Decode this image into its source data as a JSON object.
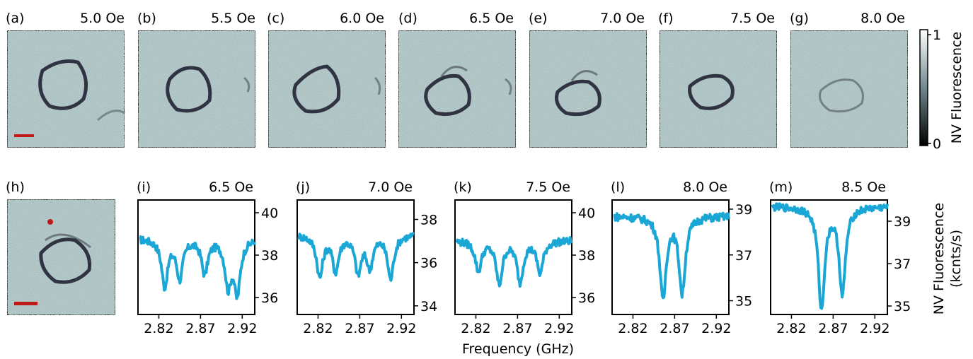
{
  "colors": {
    "trace": "#1aa7d6",
    "scalebar": "#c0191a",
    "axis": "#000000",
    "map_base": "#a9bfbf",
    "map_dark": "#1a1a2a"
  },
  "colorbar": {
    "label": "NV Fluorescence",
    "min_label": "0",
    "max_label": "1"
  },
  "maps_top": [
    {
      "tag": "(a)",
      "field": "5.0 Oe"
    },
    {
      "tag": "(b)",
      "field": "5.5 Oe"
    },
    {
      "tag": "(c)",
      "field": "6.0 Oe"
    },
    {
      "tag": "(d)",
      "field": "6.5 Oe"
    },
    {
      "tag": "(e)",
      "field": "7.0 Oe"
    },
    {
      "tag": "(f)",
      "field": "7.5 Oe"
    },
    {
      "tag": "(g)",
      "field": "8.0 Oe"
    }
  ],
  "map_h": {
    "tag": "(h)"
  },
  "shared_xlabel": "Frequency (GHz)",
  "shared_ylabel_line1": "NV Fluorescence",
  "shared_ylabel_line2": "(kcnts/s)",
  "chart_data": [
    {
      "type": "line",
      "tag": "(i)",
      "field": "6.5 Oe",
      "xlim": [
        2.795,
        2.935
      ],
      "ylim": [
        35.2,
        40.6
      ],
      "xticks": [
        2.82,
        2.87,
        2.92
      ],
      "xtick_labels": [
        "2.82",
        "2.87",
        "2.92"
      ],
      "yticks": [
        36,
        38,
        40
      ],
      "ytick_labels": [
        "36",
        "38",
        "40"
      ],
      "baseline": 38.8,
      "dips": [
        [
          2.827,
          2.2
        ],
        [
          2.845,
          1.8
        ],
        [
          2.875,
          1.6
        ],
        [
          2.903,
          2.1
        ],
        [
          2.914,
          2.5
        ]
      ]
    },
    {
      "type": "line",
      "tag": "(j)",
      "field": "7.0 Oe",
      "xlim": [
        2.795,
        2.935
      ],
      "ylim": [
        33.6,
        38.9
      ],
      "xticks": [
        2.82,
        2.87,
        2.92
      ],
      "xtick_labels": [
        "2.82",
        "2.87",
        "2.92"
      ],
      "yticks": [
        34,
        36,
        38
      ],
      "ytick_labels": [
        "34",
        "36",
        "38"
      ],
      "baseline": 37.3,
      "dips": [
        [
          2.822,
          1.9
        ],
        [
          2.841,
          1.6
        ],
        [
          2.868,
          1.7
        ],
        [
          2.882,
          1.4
        ],
        [
          2.907,
          2.0
        ]
      ]
    },
    {
      "type": "line",
      "tag": "(k)",
      "field": "7.5 Oe",
      "xlim": [
        2.795,
        2.935
      ],
      "ylim": [
        35.2,
        40.6
      ],
      "xticks": [
        2.82,
        2.87,
        2.92
      ],
      "xtick_labels": [
        "2.82",
        "2.87",
        "2.92"
      ],
      "yticks": [
        36,
        38,
        40
      ],
      "ytick_labels": [
        "36",
        "38",
        "40"
      ],
      "baseline": 38.7,
      "dips": [
        [
          2.823,
          1.4
        ],
        [
          2.848,
          2.0
        ],
        [
          2.873,
          1.9
        ],
        [
          2.897,
          1.5
        ]
      ]
    },
    {
      "type": "line",
      "tag": "(l)",
      "field": "8.0 Oe",
      "xlim": [
        2.795,
        2.935
      ],
      "ylim": [
        34.4,
        39.4
      ],
      "xticks": [
        2.82,
        2.87,
        2.92
      ],
      "xtick_labels": [
        "2.82",
        "2.87",
        "2.92"
      ],
      "yticks": [
        35,
        37,
        39
      ],
      "ytick_labels": [
        "35",
        "37",
        "39"
      ],
      "baseline": 38.7,
      "dips": [
        [
          2.856,
          3.6
        ],
        [
          2.879,
          3.3
        ]
      ]
    },
    {
      "type": "line",
      "tag": "(m)",
      "field": "8.5 Oe",
      "xlim": [
        2.795,
        2.935
      ],
      "ylim": [
        34.6,
        40.0
      ],
      "xticks": [
        2.82,
        2.87,
        2.92
      ],
      "xtick_labels": [
        "2.82",
        "2.87",
        "2.92"
      ],
      "yticks": [
        35,
        37,
        39
      ],
      "ytick_labels": [
        "35",
        "37",
        "39"
      ],
      "baseline": 39.7,
      "dips": [
        [
          2.856,
          4.8
        ],
        [
          2.881,
          4.1
        ]
      ]
    }
  ]
}
